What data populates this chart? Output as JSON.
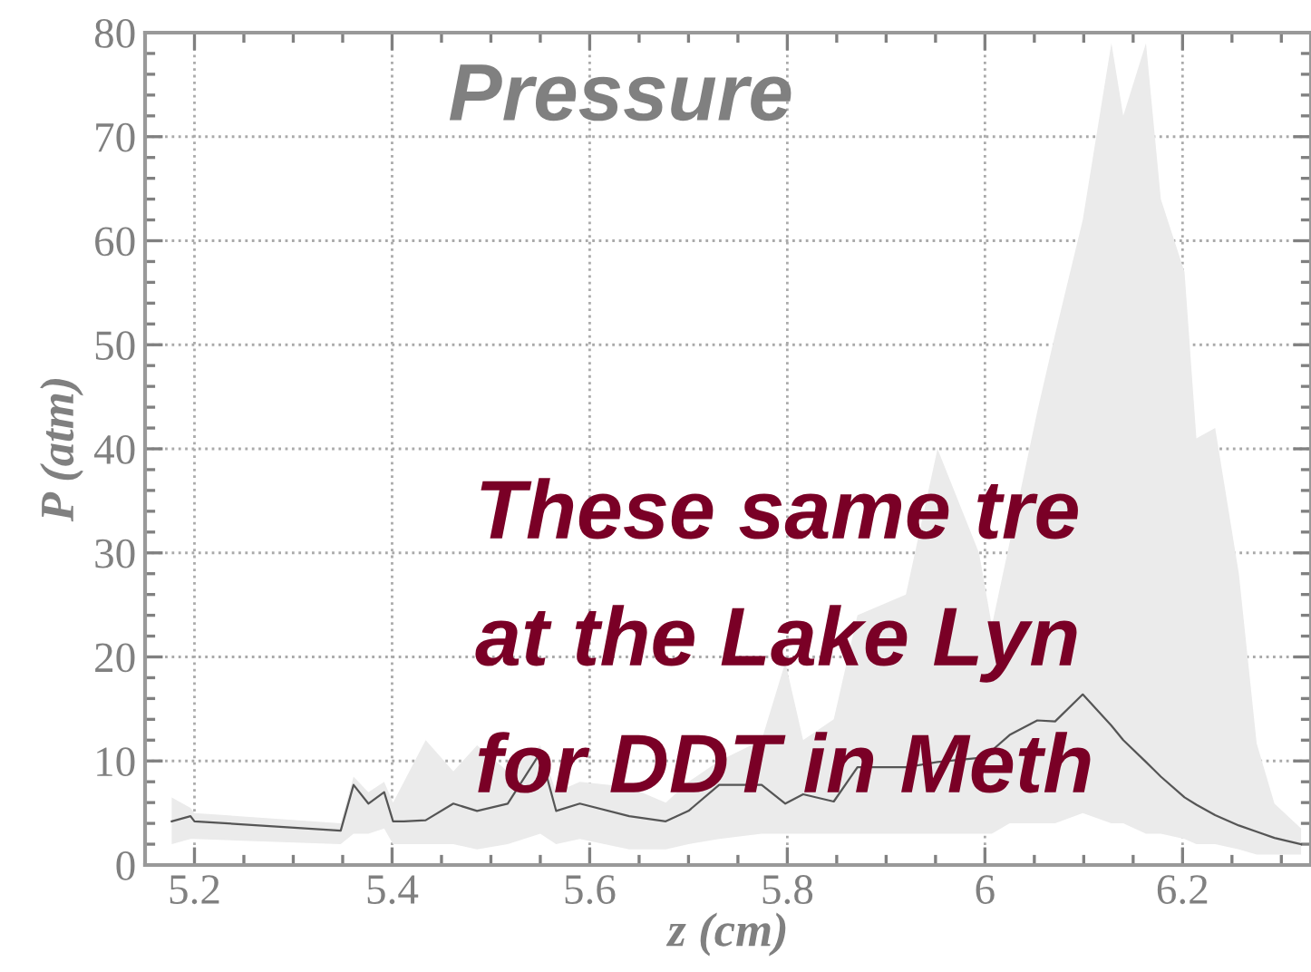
{
  "chart_data": {
    "type": "line",
    "title": "Pressure",
    "xlabel": "z (cm)",
    "ylabel": "P (atm)",
    "xlim": [
      5.15,
      6.33
    ],
    "xticks": [
      5.2,
      5.4,
      5.6,
      5.8,
      6,
      6.2
    ],
    "ylim": [
      0,
      80
    ],
    "yticks": [
      0,
      10,
      20,
      30,
      40,
      50,
      60,
      70,
      80
    ],
    "grid": true,
    "annotations": [
      "These same tre",
      "at the Lake Lyn",
      "for DDT in Meth"
    ],
    "x": [
      5.177,
      5.196,
      5.2,
      5.348,
      5.361,
      5.376,
      5.392,
      5.401,
      5.412,
      5.434,
      5.462,
      5.486,
      5.517,
      5.55,
      5.566,
      5.59,
      5.64,
      5.677,
      5.7,
      5.731,
      5.774,
      5.798,
      5.816,
      5.847,
      5.871,
      5.92,
      5.952,
      5.994,
      6.007,
      6.025,
      6.053,
      6.071,
      6.099,
      6.128,
      6.14,
      6.163,
      6.178,
      6.202,
      6.214,
      6.233,
      6.257,
      6.275,
      6.293,
      6.32
    ],
    "series": [
      {
        "color": "#555555",
        "values": [
          4.2,
          4.7,
          4.2,
          3.3,
          7.7,
          5.9,
          7.0,
          4.2,
          4.2,
          4.3,
          5.9,
          5.2,
          5.9,
          10.8,
          5.2,
          5.9,
          4.7,
          4.2,
          5.2,
          7.7,
          7.7,
          5.9,
          6.8,
          6.1,
          9.4,
          9.4,
          9.9,
          10.3,
          11.0,
          12.5,
          13.9,
          13.8,
          16.4,
          13.4,
          12.0,
          9.9,
          8.5,
          6.5,
          5.8,
          4.8,
          3.8,
          3.2,
          2.6,
          2.0
        ],
        "lower": [
          2.0,
          2.5,
          2.5,
          2.0,
          3.0,
          3.0,
          3.5,
          2.0,
          2.0,
          2.0,
          2.0,
          1.5,
          2.0,
          3.0,
          2.0,
          2.5,
          1.5,
          1.5,
          2.0,
          2.5,
          3.0,
          3.0,
          3.0,
          3.0,
          3.0,
          3.0,
          3.0,
          3.0,
          3.0,
          4.0,
          4.0,
          4.0,
          5.0,
          4.0,
          4.0,
          3.0,
          3.0,
          2.5,
          2.0,
          2.0,
          1.5,
          1.0,
          1.0,
          1.0
        ],
        "upper": [
          6.5,
          5.5,
          5.0,
          4.0,
          8.5,
          7.0,
          8.0,
          6.0,
          8.0,
          12.0,
          9.0,
          11.5,
          9.0,
          11.5,
          7.0,
          8.0,
          7.5,
          6.0,
          8.0,
          10.0,
          12.0,
          19.5,
          12.0,
          14.0,
          24.0,
          26.0,
          40.0,
          30.0,
          23.0,
          31.0,
          43.6,
          51.0,
          62.0,
          79.0,
          72.0,
          79.0,
          64.0,
          57.0,
          41.0,
          42.0,
          28.0,
          11.7,
          5.9,
          3.5
        ]
      }
    ]
  }
}
